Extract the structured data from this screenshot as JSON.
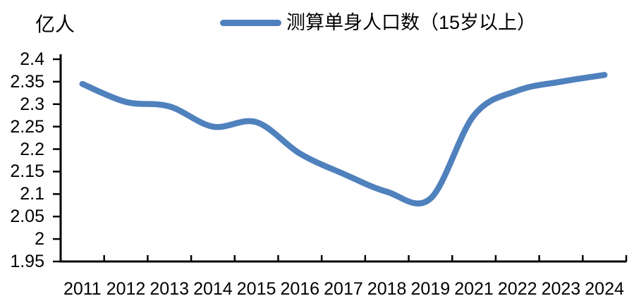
{
  "unit_label": "亿人",
  "legend": {
    "label": "测算单身人口数（15岁以上）"
  },
  "chart_data": {
    "type": "line",
    "title": "",
    "ylabel": "亿人",
    "xlabel": "",
    "grid": false,
    "legend_position": "top-center",
    "line_color": "#4F81BD",
    "axis_color": "#000000",
    "ylim": [
      1.95,
      2.4
    ],
    "y_tick_step": 0.05,
    "y_tick_labels": [
      "2.4",
      "2.35",
      "2.3",
      "2.25",
      "2.2",
      "2.15",
      "2.1",
      "2.05",
      "2",
      "1.95"
    ],
    "categories": [
      "2011",
      "2012",
      "2013",
      "2014",
      "2015",
      "2016",
      "2017",
      "2018",
      "2019",
      "2021",
      "2022",
      "2023",
      "2024"
    ],
    "series": [
      {
        "name": "测算单身人口数（15岁以上）",
        "values": [
          2.345,
          2.305,
          2.295,
          2.25,
          2.26,
          2.19,
          2.145,
          2.105,
          2.09,
          2.275,
          2.33,
          2.35,
          2.365
        ]
      }
    ]
  }
}
